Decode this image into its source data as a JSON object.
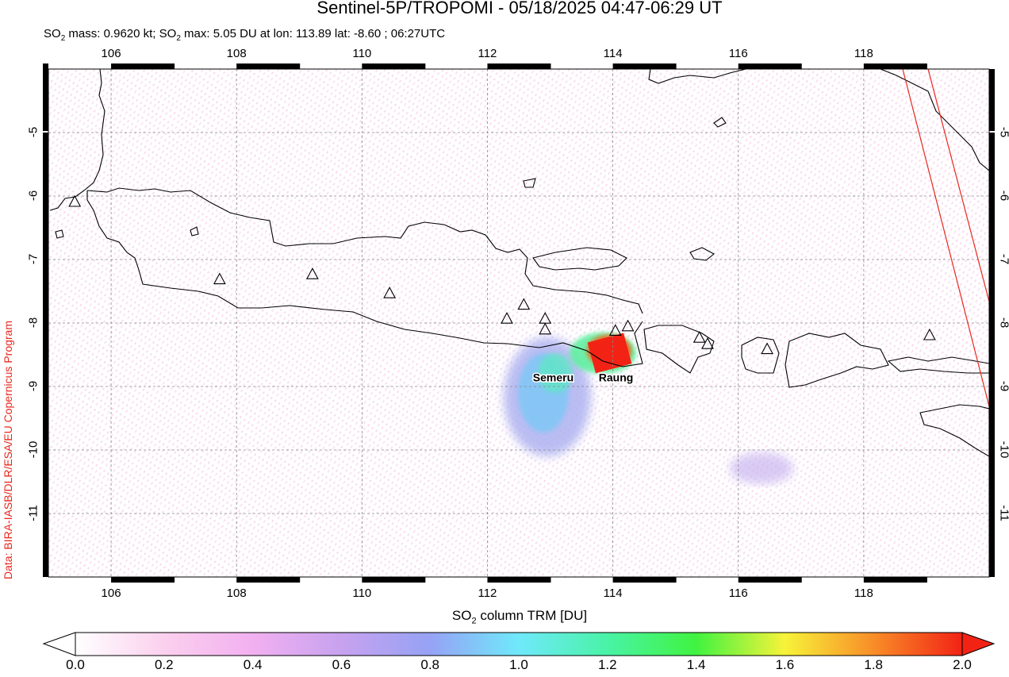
{
  "title": "Sentinel-5P/TROPOMI - 05/18/2025 04:47-06:29 UT",
  "subtitle": {
    "mass_prefix": "SO",
    "mass_sub": "2",
    "mass_text": " mass: 0.9620 kt; SO",
    "max_sub": "2",
    "max_text": " max: 5.05 DU at lon: 113.89 lat: -8.60 ; 06:27UTC"
  },
  "credit": "Data: BIRA-IASB/DLR/ESA/EU Copernicus Program",
  "map": {
    "lon_range": [
      105.0,
      120.0
    ],
    "lat_range": [
      -12.0,
      -4.0
    ],
    "lon_ticks": [
      "106",
      "108",
      "110",
      "112",
      "114",
      "116",
      "118"
    ],
    "lat_ticks": [
      "-5",
      "-6",
      "-7",
      "-8",
      "-9",
      "-10",
      "-11"
    ],
    "volcanoes": [
      {
        "name": "",
        "lon": 105.42,
        "lat": -6.1
      },
      {
        "name": "",
        "lon": 107.73,
        "lat": -7.32
      },
      {
        "name": "",
        "lon": 109.21,
        "lat": -7.24
      },
      {
        "name": "",
        "lon": 110.44,
        "lat": -7.54
      },
      {
        "name": "",
        "lon": 112.31,
        "lat": -7.94
      },
      {
        "name": "",
        "lon": 112.58,
        "lat": -7.72
      },
      {
        "name": "",
        "lon": 112.92,
        "lat": -7.94
      },
      {
        "name": "Semeru",
        "lon": 112.92,
        "lat": -8.11
      },
      {
        "name": "Raung",
        "lon": 114.04,
        "lat": -8.13
      },
      {
        "name": "",
        "lon": 114.24,
        "lat": -8.06
      },
      {
        "name": "",
        "lon": 115.38,
        "lat": -8.24
      },
      {
        "name": "",
        "lon": 115.51,
        "lat": -8.34
      },
      {
        "name": "",
        "lon": 116.46,
        "lat": -8.42
      },
      {
        "name": "",
        "lon": 119.05,
        "lat": -8.2
      }
    ],
    "labels": [
      {
        "text": "Semeru",
        "lon": 113.05,
        "lat": -8.92
      },
      {
        "text": "Raung",
        "lon": 114.05,
        "lat": -8.92
      }
    ],
    "max_point": {
      "lon": 113.89,
      "lat": -8.6
    }
  },
  "colorbar": {
    "title_prefix": "SO",
    "title_sub": "2",
    "title_text": " column TRM [DU]",
    "min": 0.0,
    "max": 2.0,
    "ticks": [
      "0.0",
      "0.2",
      "0.4",
      "0.6",
      "0.8",
      "1.0",
      "1.2",
      "1.4",
      "1.6",
      "1.8",
      "2.0"
    ],
    "colors": [
      "#ffffff",
      "#fbd0ee",
      "#f2b0f0",
      "#c7a2ef",
      "#96a2f5",
      "#6fe9fb",
      "#49f3a6",
      "#40f340",
      "#f7f33a",
      "#f88d28",
      "#f22315"
    ]
  }
}
